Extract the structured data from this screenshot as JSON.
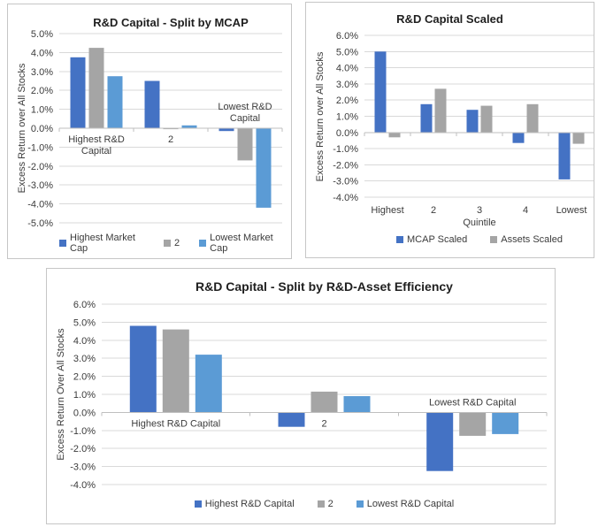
{
  "colors": {
    "dark_blue": "#4472C4",
    "gray": "#A5A5A5",
    "light_blue": "#5B9BD5",
    "gridline": "#D9D9D9",
    "axis_line": "#BFBFBF"
  },
  "chart_data": [
    {
      "type": "bar",
      "title": "R&D Capital - Split by MCAP",
      "ylabel": "Excess Return over All Stocks",
      "unit": "%",
      "categories": [
        "Highest R&D\nCapital",
        "2",
        "Lowest R&D\nCapital"
      ],
      "series": [
        {
          "name": "Highest Market Cap",
          "color": "#4472C4",
          "values": [
            3.75,
            2.5,
            -0.15
          ]
        },
        {
          "name": "2",
          "color": "#A5A5A5",
          "values": [
            4.25,
            -0.05,
            -1.7
          ]
        },
        {
          "name": "Lowest Market Cap",
          "color": "#5B9BD5",
          "values": [
            2.75,
            0.15,
            -4.2
          ]
        }
      ],
      "ylim": [
        -5,
        5
      ],
      "ytick_step": 1,
      "grid": true,
      "legend_position": "bottom",
      "category_label_position": "next-to-axis"
    },
    {
      "type": "bar",
      "title": "R&D Capital Scaled",
      "ylabel": "Excess Return over All Stocks",
      "xlabel": "Quintile",
      "unit": "%",
      "categories": [
        "Highest",
        "2",
        "3",
        "4",
        "Lowest"
      ],
      "series": [
        {
          "name": "MCAP Scaled",
          "color": "#4472C4",
          "values": [
            5.0,
            1.75,
            1.4,
            -0.65,
            -2.9
          ]
        },
        {
          "name": "Assets Scaled",
          "color": "#A5A5A5",
          "values": [
            -0.3,
            2.7,
            1.65,
            1.75,
            -0.7
          ]
        }
      ],
      "ylim": [
        -4,
        6
      ],
      "ytick_step": 1,
      "grid": true,
      "legend_position": "bottom",
      "category_label_position": "low"
    },
    {
      "type": "bar",
      "title": "R&D Capital - Split by R&D-Asset Efficiency",
      "ylabel": "Excess Return Over All Stocks",
      "unit": "%",
      "categories": [
        "Highest R&D Capital",
        "2",
        "Lowest R&D Capital"
      ],
      "series": [
        {
          "name": "Highest R&D Capital",
          "color": "#4472C4",
          "values": [
            4.8,
            -0.8,
            -3.25
          ]
        },
        {
          "name": "2",
          "color": "#A5A5A5",
          "values": [
            4.6,
            1.15,
            -1.3
          ]
        },
        {
          "name": "Lowest R&D Capital",
          "color": "#5B9BD5",
          "values": [
            3.2,
            0.9,
            -1.2
          ]
        }
      ],
      "ylim": [
        -4,
        6
      ],
      "ytick_step": 1,
      "grid": true,
      "legend_position": "bottom",
      "category_label_position": "next-to-axis"
    }
  ]
}
